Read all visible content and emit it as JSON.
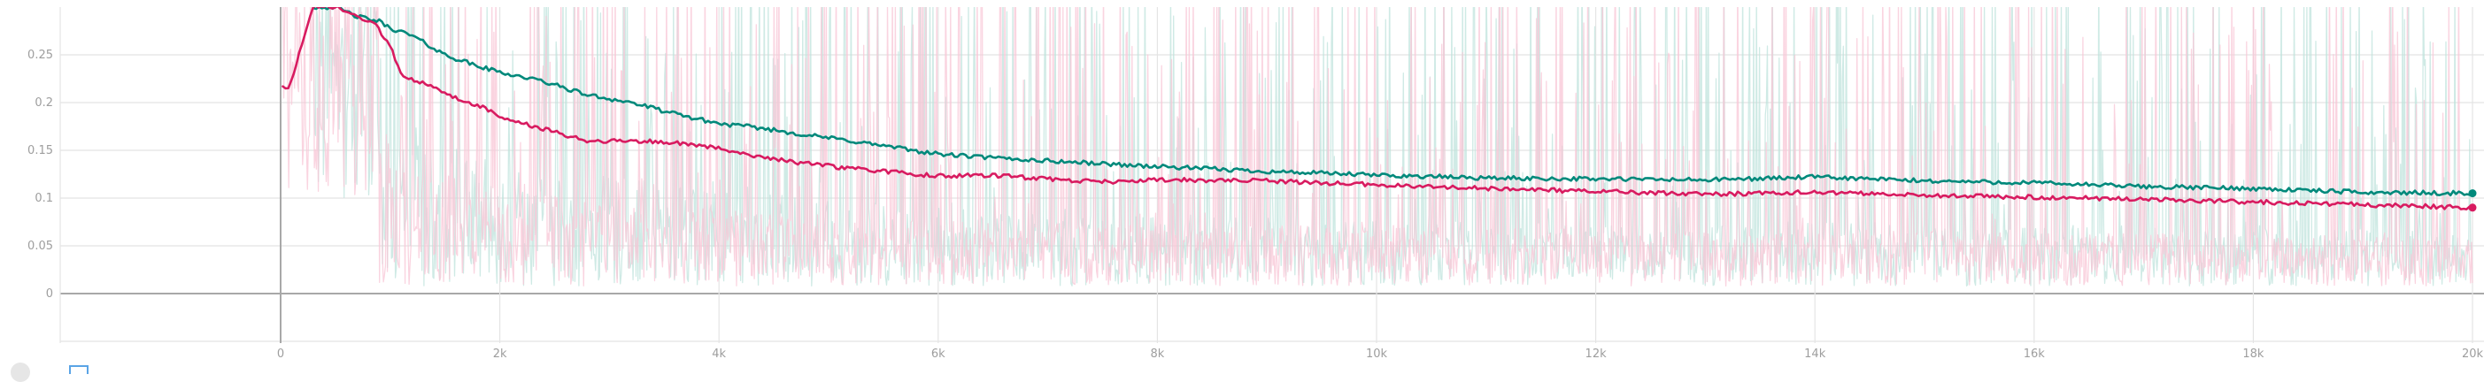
{
  "chart_data": {
    "type": "line",
    "xlim": [
      -2400,
      20000
    ],
    "ylim": [
      -0.05,
      0.3
    ],
    "x_ticks": [
      0,
      2000,
      4000,
      6000,
      8000,
      10000,
      12000,
      14000,
      16000,
      18000,
      20000
    ],
    "x_tick_labels": [
      "0",
      "2k",
      "4k",
      "6k",
      "8k",
      "10k",
      "12k",
      "14k",
      "16k",
      "18k",
      "20k"
    ],
    "y_ticks": [
      0,
      0.05,
      0.1,
      0.15,
      0.2,
      0.25
    ],
    "y_tick_labels": [
      "0",
      "0.05",
      "0.1",
      "0.15",
      "0.2",
      "0.25"
    ],
    "grid": true,
    "legend": "none",
    "series": [
      {
        "color": "#00897b",
        "raw_color": "#bfe3dc",
        "smoothed": {
          "x": [
            300,
            500,
            700,
            900,
            1000,
            1200,
            1500,
            1800,
            2000,
            2400,
            2800,
            3200,
            3600,
            4000,
            4400,
            4800,
            5200,
            5600,
            6000,
            6500,
            7000,
            7500,
            8000,
            9000,
            10000,
            11000,
            12000,
            13000,
            14000,
            15000,
            16000,
            17000,
            18000,
            19000,
            20000
          ],
          "y": [
            0.3,
            0.3,
            0.29,
            0.285,
            0.278,
            0.27,
            0.25,
            0.238,
            0.232,
            0.222,
            0.208,
            0.2,
            0.188,
            0.178,
            0.173,
            0.166,
            0.16,
            0.153,
            0.146,
            0.142,
            0.139,
            0.136,
            0.133,
            0.128,
            0.124,
            0.121,
            0.12,
            0.119,
            0.122,
            0.118,
            0.116,
            0.112,
            0.11,
            0.106,
            0.105
          ]
        },
        "end_value": 0.105
      },
      {
        "color": "#d81b60",
        "raw_color": "#f8c6d6",
        "smoothed": {
          "x": [
            20,
            60,
            300,
            500,
            700,
            850,
            1000,
            1100,
            1300,
            1500,
            1700,
            1800,
            2000,
            2400,
            2800,
            3200,
            3600,
            4000,
            4400,
            4800,
            5200,
            5600,
            6000,
            6500,
            7000,
            7500,
            8000,
            9000,
            10000,
            11000,
            12000,
            13000,
            14000,
            15000,
            16000,
            17000,
            18000,
            19000,
            20000
          ],
          "y": [
            0.218,
            0.21,
            0.3,
            0.3,
            0.29,
            0.283,
            0.26,
            0.23,
            0.22,
            0.21,
            0.2,
            0.198,
            0.185,
            0.172,
            0.16,
            0.16,
            0.158,
            0.152,
            0.143,
            0.136,
            0.131,
            0.127,
            0.123,
            0.124,
            0.12,
            0.117,
            0.119,
            0.118,
            0.114,
            0.11,
            0.107,
            0.104,
            0.106,
            0.103,
            0.101,
            0.099,
            0.096,
            0.093,
            0.09
          ]
        },
        "end_value": 0.09
      }
    ]
  }
}
